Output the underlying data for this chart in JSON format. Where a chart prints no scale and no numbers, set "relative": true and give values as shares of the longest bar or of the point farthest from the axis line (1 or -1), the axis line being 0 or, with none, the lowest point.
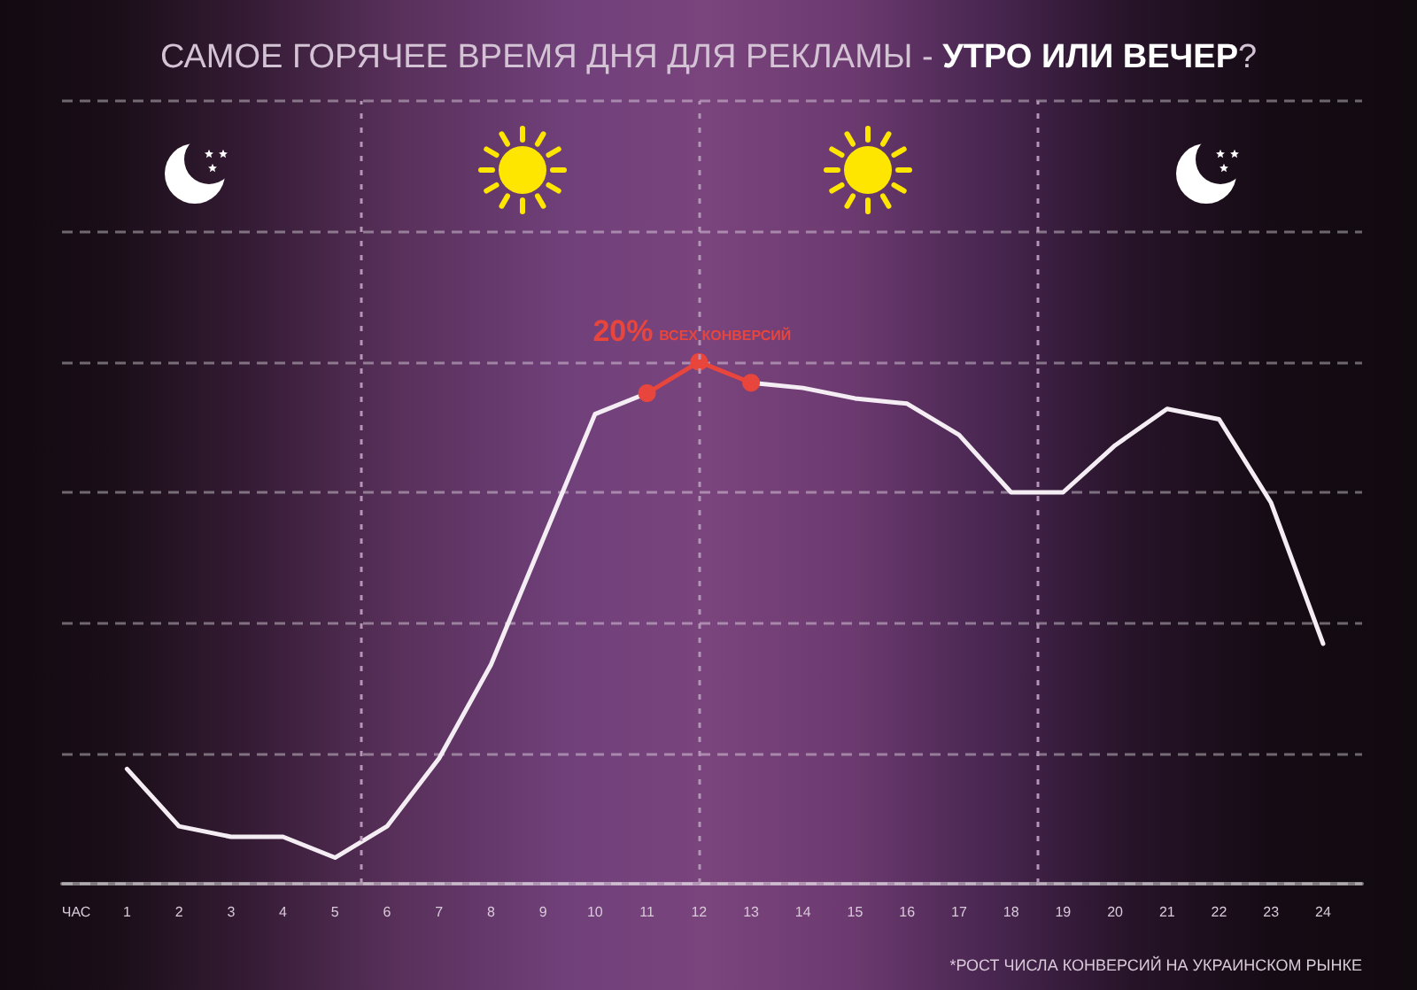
{
  "chart_data": {
    "type": "line",
    "title": "САМОЕ ГОРЯЧЕЕ ВРЕМЯ ДНЯ ДЛЯ РЕКЛАМЫ - УТРО ИЛИ ВЕЧЕР?",
    "xlabel": "ЧАС",
    "x": [
      1,
      2,
      3,
      4,
      5,
      6,
      7,
      8,
      9,
      10,
      11,
      12,
      13,
      14,
      15,
      16,
      17,
      18,
      19,
      20,
      21,
      22,
      23,
      24
    ],
    "series": [
      {
        "color": "#f4eef4",
        "marker": "none",
        "values": [
          0.22,
          0.11,
          0.09,
          0.09,
          0.05,
          0.11,
          0.24,
          0.42,
          0.66,
          0.9,
          0.94,
          null,
          0.96,
          0.95,
          0.93,
          0.92,
          0.86,
          0.75,
          0.75,
          0.84,
          0.91,
          0.89,
          0.73,
          0.46
        ]
      },
      {
        "color": "#e8453c",
        "marker": "circle",
        "values": [
          null,
          null,
          null,
          null,
          null,
          null,
          null,
          null,
          null,
          null,
          0.94,
          1,
          0.96,
          null,
          null,
          null,
          null,
          null,
          null,
          null,
          null,
          null,
          null,
          null
        ]
      }
    ],
    "relative": true,
    "xlim": [
      -0.25,
      24.75
    ],
    "xticks": [
      1,
      2,
      3,
      4,
      5,
      6,
      7,
      8,
      9,
      10,
      11,
      12,
      13,
      14,
      15,
      16,
      17,
      18,
      19,
      20,
      21,
      22,
      23,
      24
    ],
    "grid": "y",
    "ref_lines": [
      {
        "axis": "x",
        "value": 5.5,
        "color": "#b495b6",
        "line_style": "dashed"
      },
      {
        "axis": "x",
        "value": 12,
        "color": "#b495b6",
        "line_style": "dashed"
      },
      {
        "axis": "x",
        "value": 18.5,
        "color": "#b495b6",
        "line_style": "dashed"
      }
    ],
    "annotations": [
      {
        "text": "20% ВСЕХ КОНВЕРСИЙ",
        "x": 12,
        "y": 1
      },
      "*РОСТ ЧИСЛА КОНВЕРСИЙ НА УКРАИНСКОМ РЫНКЕ"
    ]
  }
}
